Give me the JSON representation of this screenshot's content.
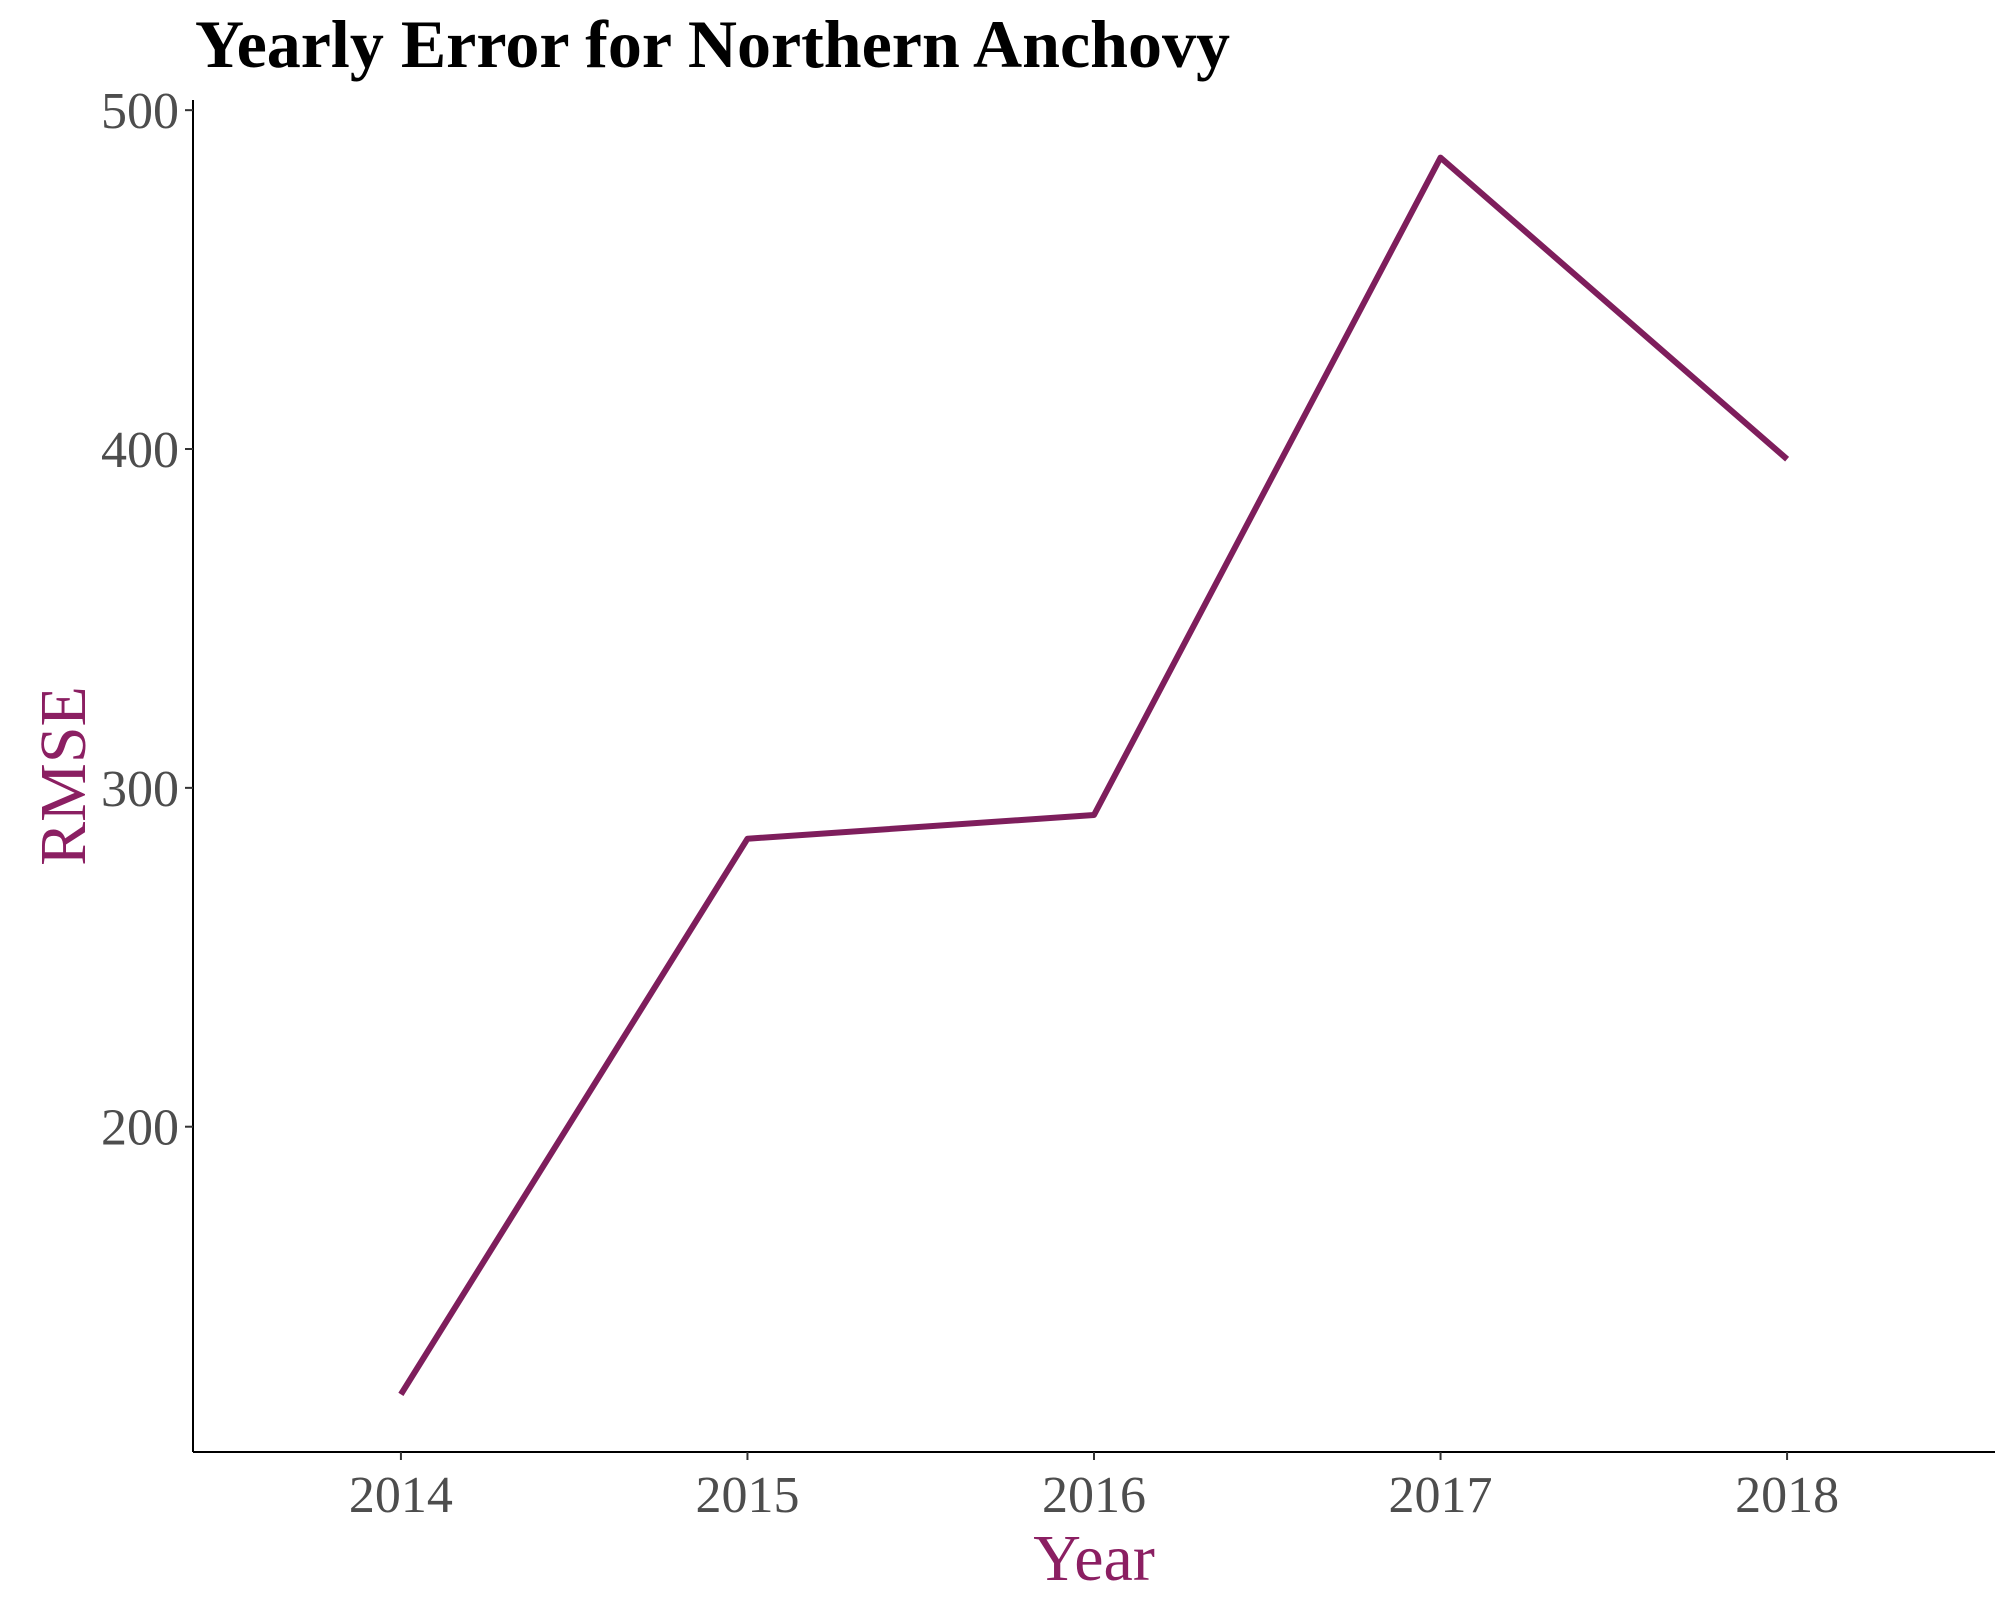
{
  "chart_data": {
    "type": "line",
    "title": "Yearly Error for Northern Anchovy",
    "xlabel": "Year",
    "ylabel": "RMSE",
    "x": [
      2014,
      2015,
      2016,
      2017,
      2018
    ],
    "x_tick_labels": [
      "2014",
      "2015",
      "2016",
      "2017",
      "2018"
    ],
    "y_ticks": [
      200,
      300,
      400,
      500
    ],
    "y_tick_labels": [
      "200",
      "300",
      "400",
      "500"
    ],
    "xlim": [
      2013.4,
      2018.6
    ],
    "ylim": [
      104,
      503
    ],
    "grid": false,
    "legend": "none",
    "series": [
      {
        "values": [
          121,
          285,
          292,
          486,
          397
        ],
        "color": "#7E1E5C"
      }
    ],
    "colors": {
      "series": "#7E1E5C",
      "axis_title": "#8B1F62",
      "tick_label": "#4d4d4d",
      "title": "#000000"
    }
  }
}
